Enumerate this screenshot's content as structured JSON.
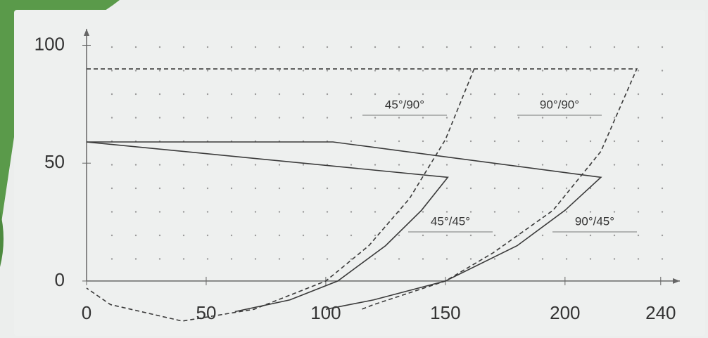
{
  "chart_data": {
    "type": "line",
    "xlim": [
      0,
      248
    ],
    "ylim": [
      -20,
      107
    ],
    "xticks": [
      0,
      50,
      100,
      150,
      200,
      240
    ],
    "yticks": [
      0,
      50,
      100
    ],
    "grid": true,
    "series": [
      {
        "name": "45°/45°",
        "color": "#3a3a3a",
        "dashed": false,
        "x": [
          0,
          151,
          140,
          125,
          105,
          85,
          62
        ],
        "values": [
          59,
          44,
          30,
          15,
          0,
          -8,
          -13
        ]
      },
      {
        "name": "90°/45°",
        "color": "#3a3a3a",
        "dashed": false,
        "x": [
          0,
          103,
          215,
          200,
          180,
          150,
          120,
          100
        ],
        "values": [
          59,
          59,
          44,
          30,
          15,
          0,
          -8,
          -12
        ]
      },
      {
        "name": "45°/90°",
        "color": "#3a3a3a",
        "dashed": true,
        "x": [
          162,
          150,
          135,
          118,
          100,
          70,
          40,
          10,
          0
        ],
        "values": [
          90,
          60,
          35,
          15,
          0,
          -12,
          -17,
          -10,
          -3
        ]
      },
      {
        "name": "90°/90°",
        "color": "#3a3a3a",
        "dashed": true,
        "x": [
          0,
          230,
          215,
          195,
          170,
          150,
          120,
          115
        ],
        "values": [
          90,
          90,
          55,
          30,
          12,
          0,
          -10,
          -12
        ]
      }
    ]
  }
}
